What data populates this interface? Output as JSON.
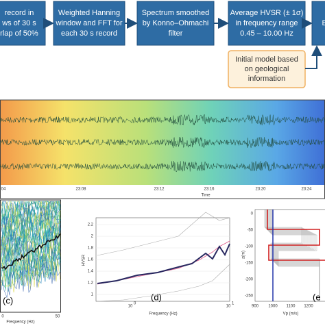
{
  "flowchart": {
    "boxes": [
      {
        "lines": [
          "record in",
          "ws of 30 s",
          "rlap of 50%"
        ]
      },
      {
        "lines": [
          "Weighted Hanning",
          "window and FFT for",
          "each 30 s record"
        ]
      },
      {
        "lines": [
          "Spectrum smoothed",
          "by  Konno–Ohmachi",
          "filter"
        ]
      },
      {
        "lines": [
          "Average HVSR (± 1σ)",
          "in frequency range",
          "0.45 – 10.00 Hz"
        ]
      },
      {
        "lines": [
          "B-"
        ]
      }
    ],
    "model_box": {
      "lines": [
        "Initial model based",
        "on geological",
        "information"
      ]
    }
  },
  "traces": {
    "time_ticks": [
      "04",
      "23:08",
      "23:12",
      "23:16",
      "23:20",
      "23:24"
    ],
    "axis_label": "Time"
  },
  "panel_c": {
    "label": "(c)",
    "xticks": [
      "0",
      "50"
    ],
    "xlabel": "Frequency (Hz)"
  },
  "panel_d": {
    "label": "(d)",
    "yticks": [
      "1",
      "1.2",
      "1.4",
      "1.6",
      "1.8",
      "2",
      "2.2"
    ],
    "ylabel": "HVSR",
    "xticks": [
      "10",
      "10"
    ],
    "xtick_exp": [
      "0",
      "1"
    ],
    "xlabel": "Frequency (Hz)"
  },
  "panel_e": {
    "label": "(e",
    "yticks": [
      "0",
      "-50",
      "-100",
      "-150",
      "-200",
      "-250"
    ],
    "ylabel": "z(m)",
    "xticks": [
      "900",
      "1000",
      "1100",
      "1200"
    ],
    "xlabel": "Vp (m/s)"
  }
}
